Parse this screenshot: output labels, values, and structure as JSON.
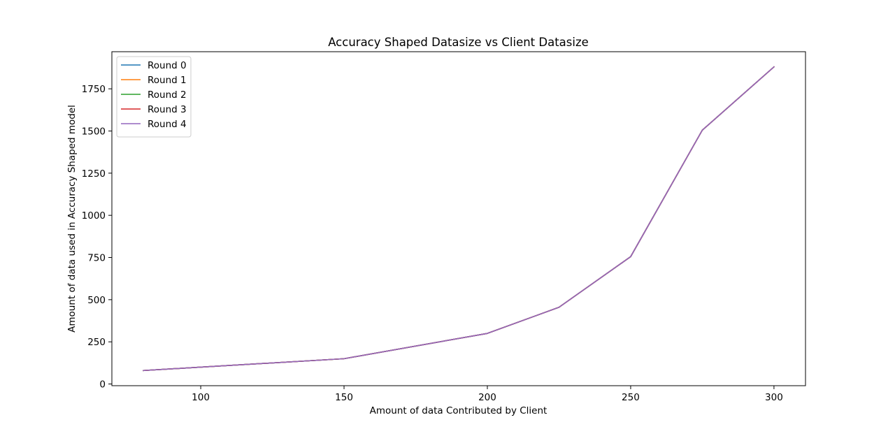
{
  "chart_data": {
    "type": "line",
    "title": "Accuracy Shaped Datasize vs Client Datasize",
    "xlabel": "Amount of data Contributed by Client",
    "ylabel": "Amount of data used in Accuracy Shaped model",
    "x": [
      80,
      100,
      150,
      200,
      225,
      250,
      275,
      300
    ],
    "xlim": [
      69,
      311
    ],
    "ylim": [
      -10,
      1970
    ],
    "xticks": [
      100,
      150,
      200,
      250,
      300
    ],
    "yticks": [
      0,
      250,
      500,
      750,
      1000,
      1250,
      1500,
      1750
    ],
    "grid": false,
    "legend_position": "upper left",
    "series": [
      {
        "name": "Round 0",
        "color": "#1f77b4",
        "values": [
          80,
          100,
          150,
          300,
          455,
          755,
          1505,
          1880
        ]
      },
      {
        "name": "Round 1",
        "color": "#ff7f0e",
        "values": [
          80,
          100,
          150,
          300,
          455,
          755,
          1505,
          1880
        ]
      },
      {
        "name": "Round 2",
        "color": "#2ca02c",
        "values": [
          80,
          100,
          150,
          300,
          455,
          755,
          1505,
          1880
        ]
      },
      {
        "name": "Round 3",
        "color": "#d62728",
        "values": [
          80,
          100,
          150,
          300,
          455,
          755,
          1505,
          1880
        ]
      },
      {
        "name": "Round 4",
        "color": "#9467bd",
        "values": [
          80,
          100,
          150,
          300,
          455,
          755,
          1505,
          1880
        ]
      }
    ]
  }
}
